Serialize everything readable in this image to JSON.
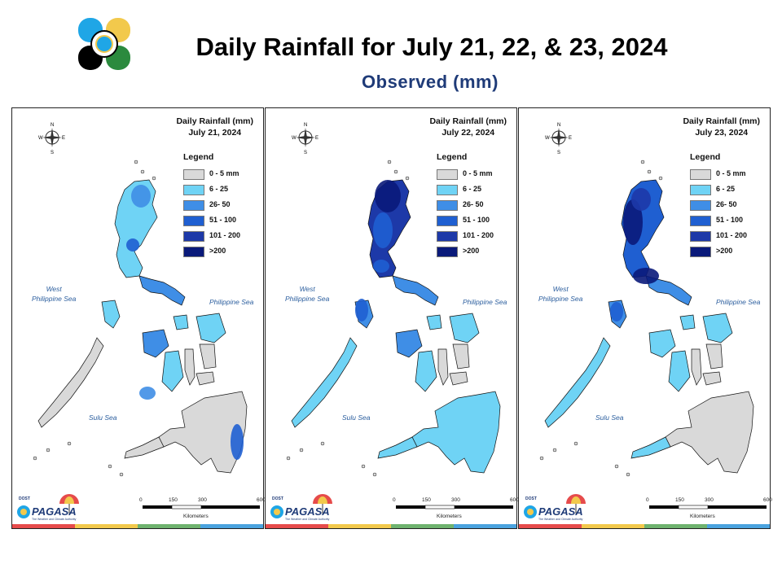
{
  "header": {
    "title": "Daily Rainfall for July 21, 22, & 23, 2024",
    "subtitle": "Observed (mm)"
  },
  "colors": {
    "title_text": "#000000",
    "subtitle_text": "#1f3b78",
    "sea_label": "#2b5e9e",
    "stripe": [
      "#e64b4b",
      "#f2c94c",
      "#6fb36f",
      "#4aa3df"
    ]
  },
  "legend": {
    "title": "Legend",
    "items": [
      {
        "label": "0 - 5 mm",
        "color": "#d9d9d9"
      },
      {
        "label": "6 - 25",
        "color": "#6fd3f5"
      },
      {
        "label": "26- 50",
        "color": "#3f8ee6"
      },
      {
        "label": "51 - 100",
        "color": "#1f5fd1"
      },
      {
        "label": "101 - 200",
        "color": "#1d39a8"
      },
      {
        "label": ">200",
        "color": "#0a1a7a"
      }
    ]
  },
  "panels": [
    {
      "title_line1": "Daily Rainfall (mm)",
      "title_line2": "July 21, 2024"
    },
    {
      "title_line1": "Daily Rainfall (mm)",
      "title_line2": "July 22, 2024"
    },
    {
      "title_line1": "Daily Rainfall (mm)",
      "title_line2": "July 23, 2024"
    }
  ],
  "map_labels": {
    "west_sea_line1": "West",
    "west_sea_line2": "Philippine Sea",
    "east_sea": "Philippine Sea",
    "sulu_sea": "Sulu Sea"
  },
  "compass": {
    "n": "N",
    "s": "S",
    "e": "E",
    "w": "W"
  },
  "scale_bar": {
    "ticks": [
      "0",
      "150",
      "300",
      "600"
    ],
    "unit": "Kilometers"
  },
  "branding": {
    "line1": "DOST",
    "line2": "PAGASA",
    "tagline": "The Weather and Climate Authority"
  }
}
